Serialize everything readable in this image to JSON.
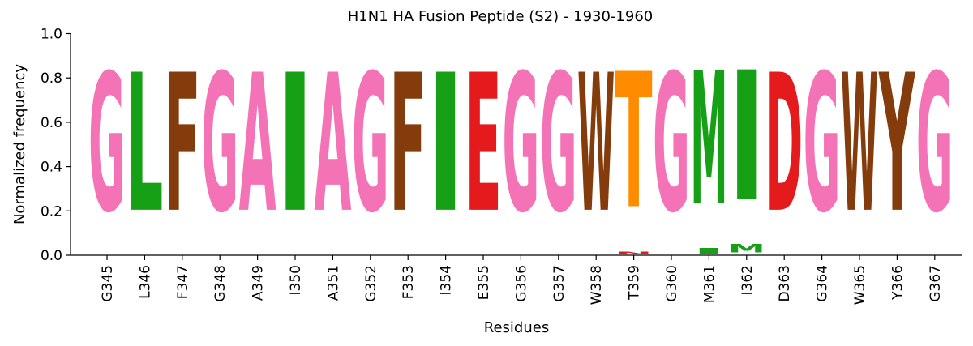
{
  "chart_data": {
    "type": "sequence-logo",
    "title": "H1N1 HA Fusion Peptide (S2) - 1930-1960",
    "xlabel": "Residues",
    "ylabel": "Normalized frequency",
    "ylim": [
      0,
      1
    ],
    "yticks": [
      "0.0",
      "0.2",
      "0.4",
      "0.6",
      "0.8",
      "1.0"
    ],
    "residues": [
      "G345",
      "L346",
      "F347",
      "G348",
      "A349",
      "I350",
      "A351",
      "G352",
      "F353",
      "I354",
      "E355",
      "G356",
      "G357",
      "W358",
      "T359",
      "G360",
      "M361",
      "I362",
      "D363",
      "G364",
      "W365",
      "Y366",
      "G367"
    ],
    "colors": {
      "G": "#f472b6",
      "A": "#f472b6",
      "L": "#16a016",
      "I": "#16a016",
      "M": "#16a016",
      "F": "#843c0c",
      "W": "#843c0c",
      "Y": "#843c0c",
      "E": "#e41a1c",
      "D": "#e41a1c",
      "T": "#ff8c00",
      "S": "#ff8c00",
      "N": "#e41a1c"
    },
    "positions": [
      [
        {
          "letter": "G",
          "freq": 1.0
        }
      ],
      [
        {
          "letter": "L",
          "freq": 1.0
        }
      ],
      [
        {
          "letter": "F",
          "freq": 1.0
        }
      ],
      [
        {
          "letter": "G",
          "freq": 1.0
        }
      ],
      [
        {
          "letter": "A",
          "freq": 1.0
        }
      ],
      [
        {
          "letter": "I",
          "freq": 1.0
        }
      ],
      [
        {
          "letter": "A",
          "freq": 1.0
        }
      ],
      [
        {
          "letter": "G",
          "freq": 1.0
        }
      ],
      [
        {
          "letter": "F",
          "freq": 1.0
        }
      ],
      [
        {
          "letter": "I",
          "freq": 1.0
        }
      ],
      [
        {
          "letter": "E",
          "freq": 1.0
        }
      ],
      [
        {
          "letter": "G",
          "freq": 1.0
        }
      ],
      [
        {
          "letter": "G",
          "freq": 1.0
        }
      ],
      [
        {
          "letter": "W",
          "freq": 1.0
        }
      ],
      [
        {
          "letter": "N",
          "freq": 0.02
        },
        {
          "letter": "T",
          "freq": 0.98
        }
      ],
      [
        {
          "letter": "G",
          "freq": 1.0
        }
      ],
      [
        {
          "letter": "I",
          "freq": 0.04
        },
        {
          "letter": "M",
          "freq": 0.96
        }
      ],
      [
        {
          "letter": "M",
          "freq": 0.06
        },
        {
          "letter": "I",
          "freq": 0.94
        }
      ],
      [
        {
          "letter": "D",
          "freq": 1.0
        }
      ],
      [
        {
          "letter": "G",
          "freq": 1.0
        }
      ],
      [
        {
          "letter": "W",
          "freq": 1.0
        }
      ],
      [
        {
          "letter": "Y",
          "freq": 1.0
        }
      ],
      [
        {
          "letter": "G",
          "freq": 1.0
        }
      ]
    ]
  }
}
